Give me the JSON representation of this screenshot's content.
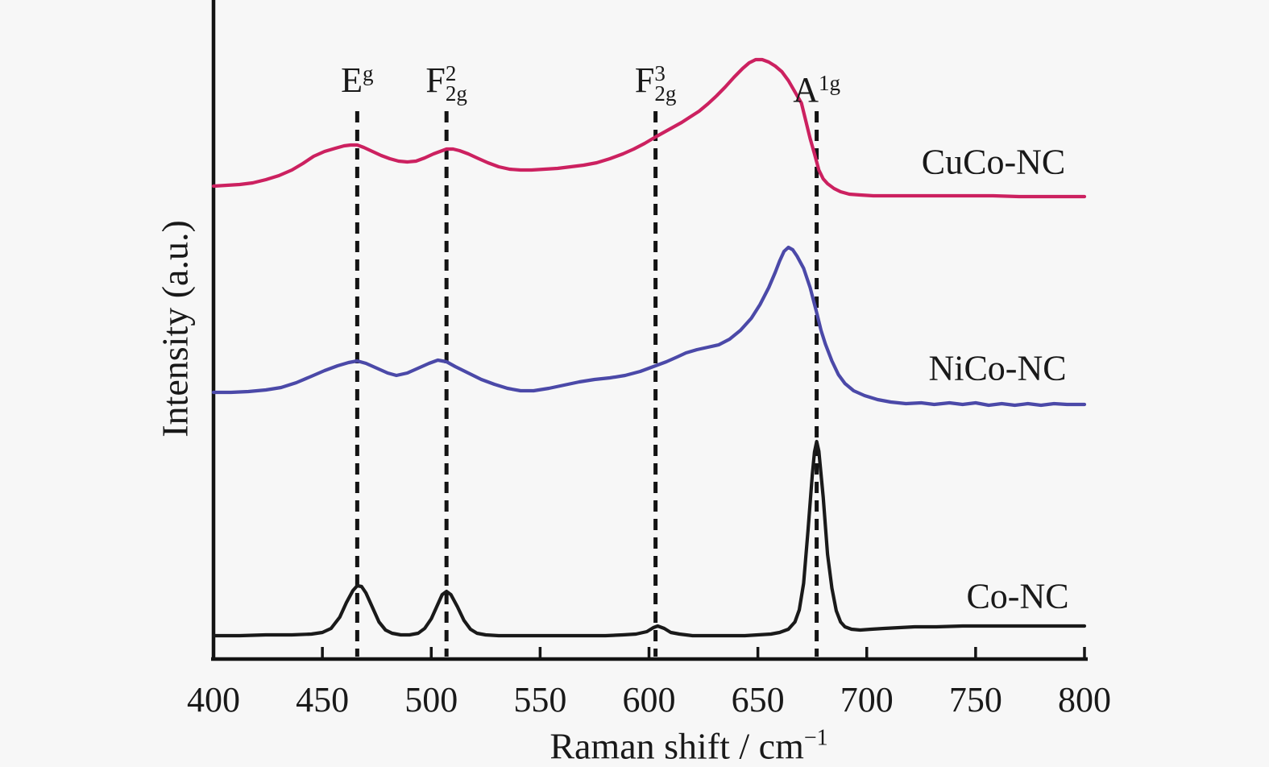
{
  "figure": {
    "background": "#f7f7f7",
    "ylabel": "Intensity (a.u.)",
    "xlabel_main": "Raman shift / cm",
    "xlabel_sup": "−1"
  },
  "chart_data": {
    "type": "line",
    "title": "",
    "xlabel": "Raman shift / cm⁻¹",
    "ylabel": "Intensity (a.u.)",
    "xlim": [
      400,
      800
    ],
    "xticks": [
      400,
      450,
      500,
      550,
      600,
      650,
      700,
      750,
      800
    ],
    "yticks": [],
    "grid": false,
    "y_units": "arbitrary (stacked offsets, relative intensity)",
    "mode_annotations": [
      {
        "base": "E",
        "sup": "",
        "sub": "g",
        "x": 466
      },
      {
        "base": "F",
        "sup": "2",
        "sub": "2g",
        "x": 507
      },
      {
        "base": "F",
        "sup": "3",
        "sub": "2g",
        "x": 603
      },
      {
        "base": "A",
        "sup": "",
        "sub": "1g",
        "x": 677
      }
    ],
    "series": [
      {
        "name": "CuCo-NC",
        "color": "#cc2160",
        "points": [
          [
            400,
            587
          ],
          [
            406,
            588
          ],
          [
            412,
            589
          ],
          [
            418,
            591
          ],
          [
            424,
            595
          ],
          [
            430,
            600
          ],
          [
            436,
            607
          ],
          [
            441,
            615
          ],
          [
            446,
            624
          ],
          [
            451,
            630
          ],
          [
            456,
            634
          ],
          [
            460,
            637
          ],
          [
            463,
            638
          ],
          [
            466,
            638
          ],
          [
            469,
            635
          ],
          [
            473,
            630
          ],
          [
            477,
            625
          ],
          [
            481,
            621
          ],
          [
            485,
            618
          ],
          [
            489,
            617
          ],
          [
            493,
            618
          ],
          [
            497,
            622
          ],
          [
            501,
            627
          ],
          [
            504,
            630
          ],
          [
            507,
            633
          ],
          [
            510,
            633
          ],
          [
            513,
            631
          ],
          [
            517,
            627
          ],
          [
            521,
            622
          ],
          [
            526,
            616
          ],
          [
            531,
            611
          ],
          [
            536,
            608
          ],
          [
            541,
            607
          ],
          [
            546,
            607
          ],
          [
            552,
            608
          ],
          [
            558,
            609
          ],
          [
            564,
            611
          ],
          [
            570,
            613
          ],
          [
            576,
            616
          ],
          [
            582,
            621
          ],
          [
            588,
            627
          ],
          [
            593,
            633
          ],
          [
            598,
            640
          ],
          [
            603,
            648
          ],
          [
            607,
            654
          ],
          [
            611,
            660
          ],
          [
            615,
            666
          ],
          [
            619,
            673
          ],
          [
            623,
            680
          ],
          [
            627,
            689
          ],
          [
            631,
            699
          ],
          [
            635,
            710
          ],
          [
            639,
            722
          ],
          [
            643,
            733
          ],
          [
            646,
            740
          ],
          [
            649,
            744
          ],
          [
            652,
            744
          ],
          [
            655,
            741
          ],
          [
            658,
            736
          ],
          [
            661,
            729
          ],
          [
            664,
            718
          ],
          [
            667,
            704
          ],
          [
            670,
            690
          ],
          [
            672,
            668
          ],
          [
            674,
            646
          ],
          [
            676,
            627
          ],
          [
            678,
            607
          ],
          [
            680,
            596
          ],
          [
            682,
            590
          ],
          [
            685,
            584
          ],
          [
            688,
            580
          ],
          [
            692,
            577
          ],
          [
            697,
            576
          ],
          [
            703,
            575
          ],
          [
            712,
            575
          ],
          [
            722,
            575
          ],
          [
            734,
            575
          ],
          [
            746,
            575
          ],
          [
            758,
            575
          ],
          [
            770,
            574
          ],
          [
            782,
            574
          ],
          [
            792,
            574
          ],
          [
            800,
            574
          ]
        ]
      },
      {
        "name": "NiCo-NC",
        "color": "#4b49a8",
        "points": [
          [
            400,
            331
          ],
          [
            408,
            331
          ],
          [
            416,
            332
          ],
          [
            424,
            334
          ],
          [
            431,
            337
          ],
          [
            438,
            343
          ],
          [
            445,
            351
          ],
          [
            451,
            358
          ],
          [
            457,
            364
          ],
          [
            462,
            368
          ],
          [
            466,
            370
          ],
          [
            470,
            367
          ],
          [
            475,
            361
          ],
          [
            480,
            355
          ],
          [
            484,
            352
          ],
          [
            489,
            355
          ],
          [
            494,
            361
          ],
          [
            499,
            367
          ],
          [
            503,
            371
          ],
          [
            507,
            369
          ],
          [
            511,
            363
          ],
          [
            517,
            355
          ],
          [
            523,
            347
          ],
          [
            529,
            341
          ],
          [
            535,
            336
          ],
          [
            541,
            333
          ],
          [
            547,
            333
          ],
          [
            554,
            336
          ],
          [
            561,
            340
          ],
          [
            568,
            344
          ],
          [
            575,
            347
          ],
          [
            582,
            349
          ],
          [
            589,
            352
          ],
          [
            596,
            357
          ],
          [
            602,
            363
          ],
          [
            608,
            369
          ],
          [
            613,
            375
          ],
          [
            617,
            380
          ],
          [
            622,
            384
          ],
          [
            627,
            387
          ],
          [
            632,
            390
          ],
          [
            637,
            397
          ],
          [
            642,
            408
          ],
          [
            647,
            423
          ],
          [
            651,
            440
          ],
          [
            655,
            461
          ],
          [
            658,
            480
          ],
          [
            660,
            494
          ],
          [
            662,
            506
          ],
          [
            664,
            511
          ],
          [
            666,
            508
          ],
          [
            668,
            500
          ],
          [
            671,
            485
          ],
          [
            674,
            461
          ],
          [
            677,
            430
          ],
          [
            679,
            408
          ],
          [
            681,
            391
          ],
          [
            684,
            370
          ],
          [
            687,
            353
          ],
          [
            690,
            342
          ],
          [
            694,
            333
          ],
          [
            699,
            327
          ],
          [
            705,
            322
          ],
          [
            711,
            319
          ],
          [
            718,
            317
          ],
          [
            725,
            318
          ],
          [
            731,
            316
          ],
          [
            738,
            318
          ],
          [
            744,
            316
          ],
          [
            750,
            318
          ],
          [
            756,
            315
          ],
          [
            762,
            317
          ],
          [
            768,
            315
          ],
          [
            774,
            317
          ],
          [
            780,
            315
          ],
          [
            786,
            317
          ],
          [
            792,
            316
          ],
          [
            800,
            316
          ]
        ]
      },
      {
        "name": "Co-NC",
        "color": "#1a1a1a",
        "points": [
          [
            400,
            29
          ],
          [
            412,
            29
          ],
          [
            424,
            30
          ],
          [
            436,
            30
          ],
          [
            445,
            31
          ],
          [
            450,
            33
          ],
          [
            454,
            38
          ],
          [
            458,
            52
          ],
          [
            461,
            70
          ],
          [
            464,
            85
          ],
          [
            466,
            91
          ],
          [
            468,
            90
          ],
          [
            470,
            82
          ],
          [
            473,
            64
          ],
          [
            476,
            46
          ],
          [
            479,
            36
          ],
          [
            482,
            32
          ],
          [
            486,
            30
          ],
          [
            490,
            30
          ],
          [
            494,
            32
          ],
          [
            497,
            38
          ],
          [
            500,
            50
          ],
          [
            503,
            68
          ],
          [
            505,
            80
          ],
          [
            507,
            84
          ],
          [
            509,
            80
          ],
          [
            512,
            65
          ],
          [
            515,
            48
          ],
          [
            518,
            37
          ],
          [
            521,
            32
          ],
          [
            525,
            30
          ],
          [
            531,
            29
          ],
          [
            540,
            29
          ],
          [
            550,
            29
          ],
          [
            560,
            29
          ],
          [
            570,
            29
          ],
          [
            580,
            29
          ],
          [
            588,
            30
          ],
          [
            594,
            31
          ],
          [
            599,
            34
          ],
          [
            602,
            39
          ],
          [
            604,
            41
          ],
          [
            607,
            38
          ],
          [
            610,
            33
          ],
          [
            614,
            31
          ],
          [
            620,
            29
          ],
          [
            628,
            29
          ],
          [
            636,
            29
          ],
          [
            644,
            29
          ],
          [
            650,
            30
          ],
          [
            656,
            31
          ],
          [
            660,
            33
          ],
          [
            664,
            37
          ],
          [
            667,
            46
          ],
          [
            669,
            61
          ],
          [
            671,
            94
          ],
          [
            673,
            159
          ],
          [
            675,
            229
          ],
          [
            676,
            257
          ],
          [
            677,
            270
          ],
          [
            678,
            258
          ],
          [
            680,
            201
          ],
          [
            682,
            130
          ],
          [
            684,
            88
          ],
          [
            686,
            60
          ],
          [
            688,
            46
          ],
          [
            690,
            40
          ],
          [
            693,
            37
          ],
          [
            697,
            36
          ],
          [
            702,
            37
          ],
          [
            708,
            38
          ],
          [
            715,
            39
          ],
          [
            722,
            40
          ],
          [
            732,
            40
          ],
          [
            744,
            41
          ],
          [
            756,
            41
          ],
          [
            768,
            41
          ],
          [
            780,
            41
          ],
          [
            790,
            41
          ],
          [
            800,
            41
          ]
        ]
      }
    ]
  }
}
